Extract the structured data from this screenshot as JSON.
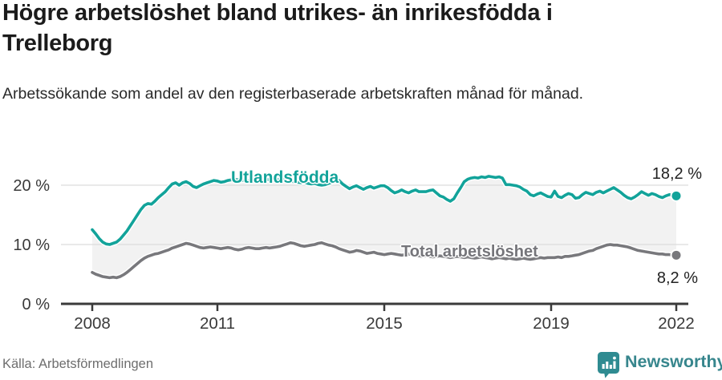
{
  "header": {
    "title": "Högre arbetslöshet bland utrikes- än inrikesfödda i Trelleborg",
    "subtitle": "Arbetssökande som andel av den registerbaserade arbetskraften månad för månad."
  },
  "chart_data": {
    "type": "line",
    "title": "Högre arbetslöshet bland utrikes- än inrikesfödda i Trelleborg",
    "unit": "%",
    "x_start_year": 2008,
    "x_end_year": 2022,
    "points_per_year": 12,
    "x_ticks": [
      2008,
      2011,
      2015,
      2019,
      2022
    ],
    "y_ticks": [
      0,
      10,
      20
    ],
    "y_tick_labels": [
      "0 %",
      "10 %",
      "20 %"
    ],
    "ylim": [
      0,
      24
    ],
    "grid": "horizontal",
    "legend_position": "inline-labels",
    "area_fill_between_series": true,
    "series": [
      {
        "name": "Utlandsfödda",
        "color": "#12a39a",
        "end_label": "18,2 %",
        "end_value": 18.2,
        "values": [
          12.5,
          11.8,
          11.0,
          10.4,
          10.1,
          10.0,
          10.2,
          10.4,
          10.9,
          11.6,
          12.3,
          13.2,
          14.1,
          15.0,
          15.9,
          16.6,
          16.9,
          16.8,
          17.3,
          17.9,
          18.4,
          18.9,
          19.6,
          20.2,
          20.4,
          20.0,
          20.4,
          20.6,
          20.3,
          19.8,
          19.6,
          19.9,
          20.2,
          20.4,
          20.6,
          20.8,
          20.7,
          20.5,
          20.6,
          20.8,
          20.9,
          21.0,
          20.9,
          20.8,
          20.9,
          20.7,
          20.6,
          20.7,
          20.8,
          20.9,
          21.0,
          20.9,
          20.8,
          20.9,
          21.0,
          20.9,
          20.8,
          20.7,
          20.6,
          20.5,
          20.4,
          20.5,
          20.3,
          20.2,
          20.3,
          20.1,
          20.0,
          20.1,
          20.3,
          20.5,
          20.6,
          20.8,
          20.2,
          19.8,
          19.4,
          19.7,
          19.9,
          19.6,
          19.3,
          19.6,
          19.8,
          19.5,
          19.7,
          19.9,
          19.9,
          19.6,
          19.1,
          18.7,
          18.9,
          19.2,
          18.9,
          18.7,
          19.0,
          19.2,
          18.9,
          18.9,
          18.9,
          19.1,
          19.2,
          18.7,
          18.2,
          18.0,
          17.6,
          17.3,
          17.7,
          18.7,
          19.6,
          20.6,
          21.0,
          21.2,
          21.3,
          21.2,
          21.4,
          21.3,
          21.5,
          21.4,
          21.3,
          21.4,
          21.2,
          20.1,
          20.1,
          20.0,
          19.9,
          19.7,
          19.3,
          19.0,
          18.4,
          18.2,
          18.5,
          18.7,
          18.4,
          18.1,
          18.0,
          19.0,
          18.1,
          17.9,
          18.3,
          18.6,
          18.4,
          17.8,
          17.9,
          18.4,
          18.8,
          18.6,
          18.4,
          18.8,
          19.0,
          18.7,
          19.0,
          19.3,
          19.6,
          19.2,
          18.8,
          18.3,
          17.9,
          17.7,
          18.0,
          18.4,
          18.9,
          18.6,
          18.3,
          18.6,
          18.4,
          18.1,
          17.9,
          18.2,
          18.4,
          18.3,
          18.2
        ]
      },
      {
        "name": "Total arbetslöshet",
        "color": "#78787c",
        "end_label": "8,2 %",
        "end_value": 8.2,
        "values": [
          5.3,
          5.0,
          4.8,
          4.6,
          4.5,
          4.4,
          4.5,
          4.4,
          4.6,
          4.9,
          5.3,
          5.8,
          6.3,
          6.8,
          7.3,
          7.7,
          8.0,
          8.2,
          8.4,
          8.5,
          8.7,
          8.9,
          9.1,
          9.4,
          9.6,
          9.8,
          10.0,
          10.2,
          10.1,
          9.9,
          9.7,
          9.5,
          9.4,
          9.5,
          9.6,
          9.5,
          9.4,
          9.3,
          9.4,
          9.5,
          9.4,
          9.2,
          9.1,
          9.2,
          9.4,
          9.5,
          9.4,
          9.3,
          9.3,
          9.4,
          9.5,
          9.4,
          9.5,
          9.6,
          9.7,
          9.9,
          10.1,
          10.3,
          10.2,
          10.0,
          9.8,
          9.7,
          9.8,
          9.9,
          10.0,
          10.2,
          10.3,
          10.1,
          9.9,
          9.8,
          9.6,
          9.3,
          9.1,
          8.9,
          8.7,
          8.8,
          9.0,
          8.9,
          8.7,
          8.5,
          8.6,
          8.7,
          8.5,
          8.4,
          8.3,
          8.4,
          8.5,
          8.4,
          8.3,
          8.2,
          8.3,
          8.4,
          8.3,
          8.2,
          8.1,
          8.0,
          8.1,
          8.0,
          7.9,
          8.0,
          8.1,
          8.0,
          7.9,
          7.8,
          7.9,
          8.0,
          7.9,
          7.8,
          7.9,
          7.8,
          7.7,
          7.8,
          7.9,
          7.8,
          7.7,
          7.6,
          7.7,
          7.8,
          7.7,
          7.6,
          7.7,
          7.6,
          7.5,
          7.6,
          7.7,
          7.6,
          7.5,
          7.6,
          7.7,
          7.8,
          7.7,
          7.8,
          7.8,
          7.8,
          7.9,
          7.8,
          8.0,
          8.0,
          8.1,
          8.2,
          8.3,
          8.5,
          8.7,
          8.9,
          9.0,
          9.3,
          9.5,
          9.7,
          9.9,
          10.0,
          9.9,
          9.9,
          9.8,
          9.7,
          9.6,
          9.4,
          9.2,
          9.0,
          8.9,
          8.8,
          8.7,
          8.6,
          8.5,
          8.4,
          8.4,
          8.3,
          8.3,
          8.2,
          8.2
        ]
      }
    ]
  },
  "footer": {
    "source": "Källa: Arbetsförmedlingen",
    "brand": "Newsworthy"
  },
  "colors": {
    "accent_teal": "#12a39a",
    "line_gray": "#78787c",
    "band_fill": "#f2f2f2",
    "gridline": "#dcdcdc",
    "axis": "#3a3a3a",
    "brand_teal": "#37868d"
  },
  "icons": {
    "brand_icon": "newsworthy-barchart-bubble-icon"
  }
}
